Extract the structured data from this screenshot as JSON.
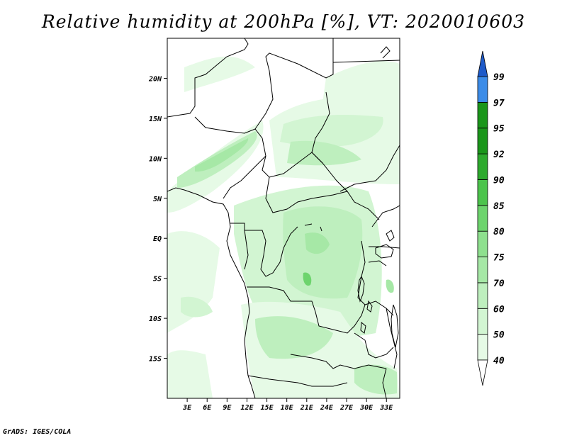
{
  "title": "Relative humidity at 200hPa [%], VT: 2020010603",
  "footer": "GrADS: IGES/COLA",
  "map": {
    "lon_range": [
      0,
      35
    ],
    "lat_range": [
      -20,
      25
    ],
    "lat_ticks": [
      {
        "lat": 20,
        "label": "20N"
      },
      {
        "lat": 15,
        "label": "15N"
      },
      {
        "lat": 10,
        "label": "10N"
      },
      {
        "lat": 5,
        "label": "5N"
      },
      {
        "lat": 0,
        "label": "EQ"
      },
      {
        "lat": -5,
        "label": "5S"
      },
      {
        "lat": -10,
        "label": "10S"
      },
      {
        "lat": -15,
        "label": "15S"
      }
    ],
    "lon_ticks": [
      {
        "lon": 3,
        "label": "3E"
      },
      {
        "lon": 6,
        "label": "6E"
      },
      {
        "lon": 9,
        "label": "9E"
      },
      {
        "lon": 12,
        "label": "12E"
      },
      {
        "lon": 15,
        "label": "15E"
      },
      {
        "lon": 18,
        "label": "18E"
      },
      {
        "lon": 21,
        "label": "21E"
      },
      {
        "lon": 24,
        "label": "24E"
      },
      {
        "lon": 27,
        "label": "27E"
      },
      {
        "lon": 30,
        "label": "30E"
      },
      {
        "lon": 33,
        "label": "33E"
      }
    ]
  },
  "colorbar": {
    "levels": [
      {
        "label": "40",
        "color": "#e6fae6"
      },
      {
        "label": "50",
        "color": "#d2f5d2"
      },
      {
        "label": "60",
        "color": "#beefbe"
      },
      {
        "label": "70",
        "color": "#a6e8a6"
      },
      {
        "label": "75",
        "color": "#8ee08e"
      },
      {
        "label": "80",
        "color": "#6dd46d"
      },
      {
        "label": "85",
        "color": "#4cc44c"
      },
      {
        "label": "90",
        "color": "#2daa2d"
      },
      {
        "label": "92",
        "color": "#1a961a"
      },
      {
        "label": "95",
        "color": "#1a961a"
      },
      {
        "label": "97",
        "color": "#3c8ce8"
      },
      {
        "label": "99",
        "color": "#2266dd"
      }
    ],
    "bottom_color": "#ffffff",
    "top_color": "#1e5ac8"
  }
}
